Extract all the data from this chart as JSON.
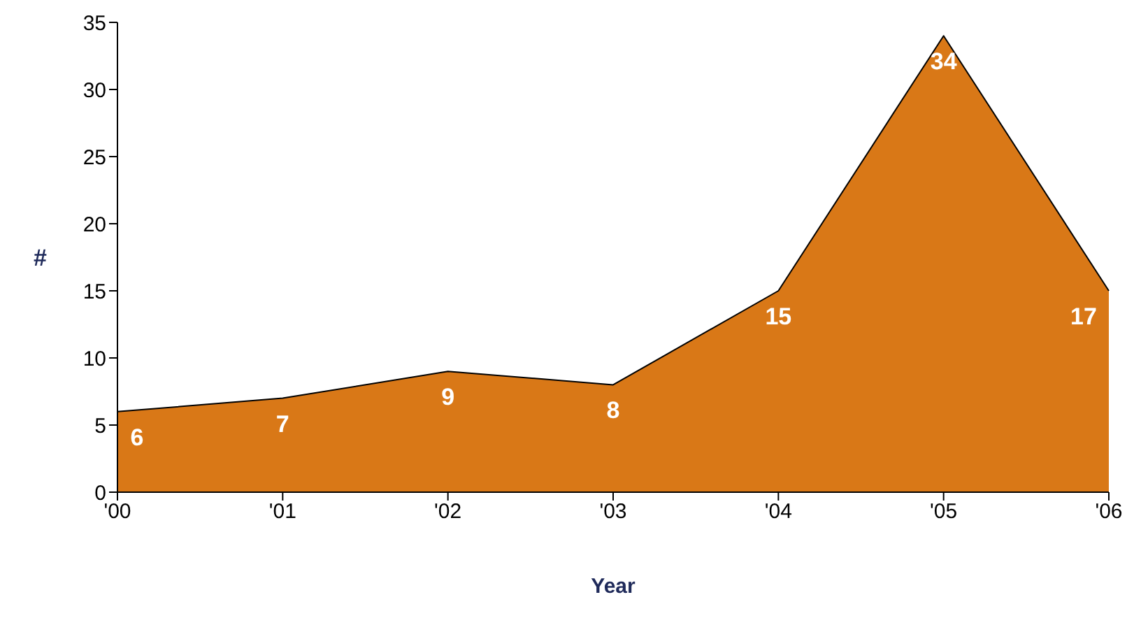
{
  "chart_data": {
    "type": "area",
    "xlabel": "Year",
    "ylabel": "#",
    "categories": [
      "'00",
      "'01",
      "'02",
      "'03",
      "'04",
      "'05",
      "'06"
    ],
    "series": [
      {
        "color": "#d97817",
        "values": [
          6,
          7,
          9,
          8,
          15,
          34,
          15
        ],
        "value_labels": [
          "6",
          "7",
          "9",
          "8",
          "15",
          "34",
          null
        ]
      }
    ],
    "annotations": [
      {
        "text": "17",
        "x": "'06",
        "y": 15
      }
    ],
    "ylim": [
      0,
      35
    ],
    "yticks": [
      0,
      5,
      10,
      15,
      20,
      25,
      30,
      35
    ]
  }
}
